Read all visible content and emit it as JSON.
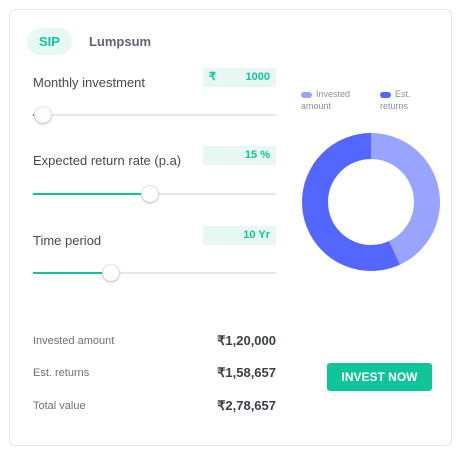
{
  "tabs": [
    {
      "label": "SIP",
      "active": true
    },
    {
      "label": "Lumpsum",
      "active": false
    }
  ],
  "inputs": {
    "monthly_investment": {
      "label": "Monthly investment",
      "symbol": "₹",
      "value": "1000",
      "slider_fraction": 0.04
    },
    "return_rate": {
      "label": "Expected return rate (p.a)",
      "value": "15 %",
      "slider_fraction": 0.48
    },
    "time_period": {
      "label": "Time period",
      "value": "10 Yr",
      "slider_fraction": 0.32
    }
  },
  "legend": {
    "invested": {
      "label": "Invested amount",
      "color": "#98a4ff"
    },
    "returns": {
      "label": "Est. returns",
      "color": "#5367ff"
    }
  },
  "chart_data": {
    "type": "pie",
    "donut": true,
    "slices": [
      {
        "name": "Invested amount",
        "value": 120000,
        "color": "#98a4ff"
      },
      {
        "name": "Est. returns",
        "value": 158657,
        "color": "#5367ff"
      }
    ]
  },
  "summary": {
    "invested": {
      "label": "Invested amount",
      "value": "₹1,20,000"
    },
    "returns": {
      "label": "Est. returns",
      "value": "₹1,58,657"
    },
    "total": {
      "label": "Total value",
      "value": "₹2,78,657"
    }
  },
  "cta": {
    "label": "INVEST NOW"
  },
  "colors": {
    "accent": "#10c49a",
    "accent_bg": "#e6f8f1",
    "invested": "#98a4ff",
    "returns": "#5367ff"
  }
}
